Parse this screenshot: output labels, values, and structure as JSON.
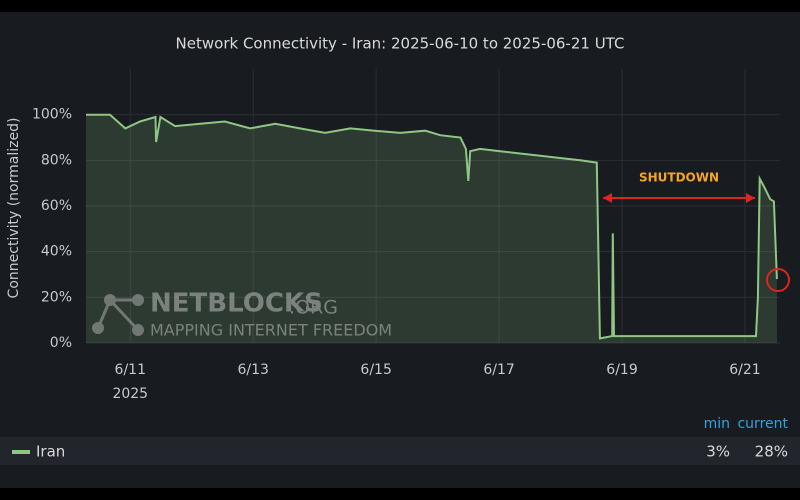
{
  "chart_data": {
    "type": "line",
    "title": "Network Connectivity - Iran: 2025-06-10 to 2025-06-21 UTC",
    "y_label": "Connectivity (normalized)",
    "x_year_label": "2025",
    "xlim": [
      10.28,
      21.57
    ],
    "ylim": [
      0,
      120
    ],
    "xticks": [
      {
        "value": 11,
        "label": "6/11"
      },
      {
        "value": 13,
        "label": "6/13"
      },
      {
        "value": 15,
        "label": "6/15"
      },
      {
        "value": 17,
        "label": "6/17"
      },
      {
        "value": 19,
        "label": "6/19"
      },
      {
        "value": 21,
        "label": "6/21"
      }
    ],
    "yticks": [
      {
        "value": 0,
        "label": "0%"
      },
      {
        "value": 20,
        "label": "20%"
      },
      {
        "value": 40,
        "label": "40%"
      },
      {
        "value": 60,
        "label": "60%"
      },
      {
        "value": 80,
        "label": "80%"
      },
      {
        "value": 100,
        "label": "100%"
      }
    ],
    "grid": true,
    "series": [
      {
        "name": "Iran",
        "color": "#8fc683",
        "x": [
          10.28,
          10.67,
          10.92,
          11.16,
          11.41,
          11.42,
          11.49,
          11.73,
          12.14,
          12.54,
          12.95,
          13.36,
          13.76,
          14.17,
          14.58,
          14.98,
          15.39,
          15.8,
          16.04,
          16.37,
          16.46,
          16.5,
          16.53,
          16.69,
          17.02,
          17.34,
          17.67,
          17.99,
          18.32,
          18.59,
          18.64,
          18.84,
          18.85,
          18.87,
          19.46,
          20.27,
          21.18,
          21.21,
          21.24,
          21.32,
          21.41,
          21.47,
          21.52
        ],
        "values": [
          100,
          100,
          94,
          97,
          99,
          88,
          99,
          95,
          96,
          97,
          94,
          96,
          94,
          92,
          94,
          93,
          92,
          93,
          91,
          90,
          85,
          71,
          84,
          85,
          84,
          83,
          82,
          81,
          80,
          79,
          2,
          3,
          48,
          3,
          3,
          3,
          3,
          20,
          72,
          68,
          63,
          62,
          28
        ]
      }
    ],
    "annotation": "SHUTDOWN",
    "watermark": {
      "name": "NETBLOCKS",
      "suffix": ".ORG",
      "tagline": "MAPPING INTERNET FREEDOM"
    },
    "legend_stats": {
      "headers": [
        "min",
        "current"
      ],
      "values": [
        3,
        28
      ],
      "value_labels": [
        "3%",
        "28%"
      ]
    }
  }
}
